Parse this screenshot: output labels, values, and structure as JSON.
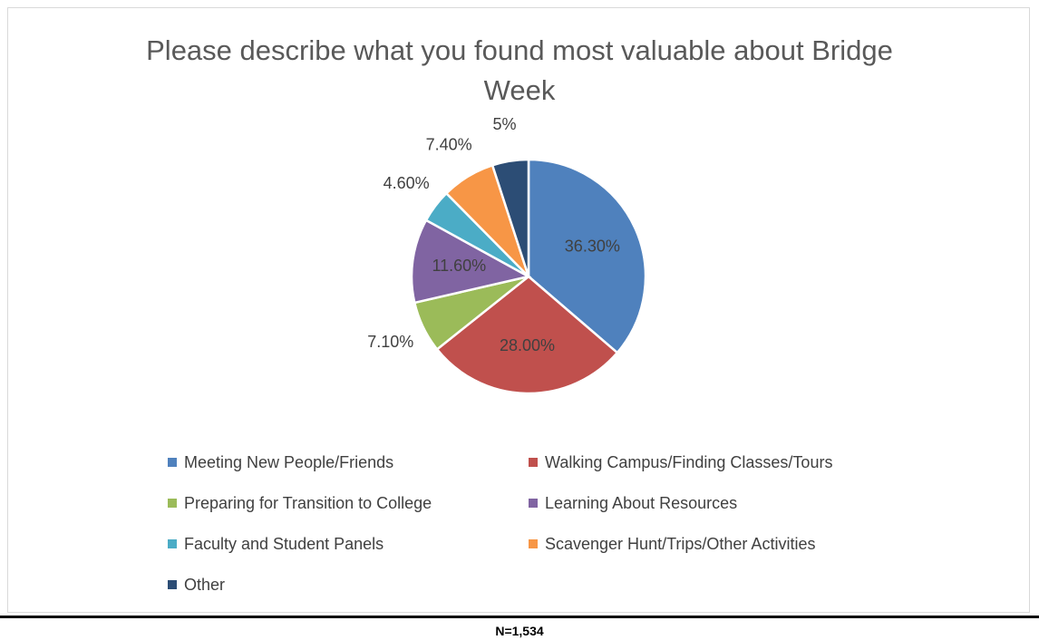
{
  "chart_data": {
    "type": "pie",
    "title": "Please describe what you found most valuable about Bridge Week",
    "categories": [
      "Meeting New People/Friends",
      "Walking Campus/Finding Classes/Tours",
      "Preparing for Transition to College",
      "Learning About Resources",
      "Faculty and Student Panels",
      "Scavenger Hunt/Trips/Other Activities",
      "Other"
    ],
    "values": [
      36.3,
      28.0,
      7.1,
      11.6,
      4.6,
      7.4,
      5
    ],
    "value_labels": [
      "36.30%",
      "28.00%",
      "7.10%",
      "11.60%",
      "4.60%",
      "7.40%",
      "5%"
    ],
    "colors": [
      "#4f81bd",
      "#c0504d",
      "#9bbb59",
      "#8064a2",
      "#4bacc6",
      "#f79646",
      "#2c4d75"
    ],
    "legend": "bottom",
    "note": "N=1,534"
  }
}
